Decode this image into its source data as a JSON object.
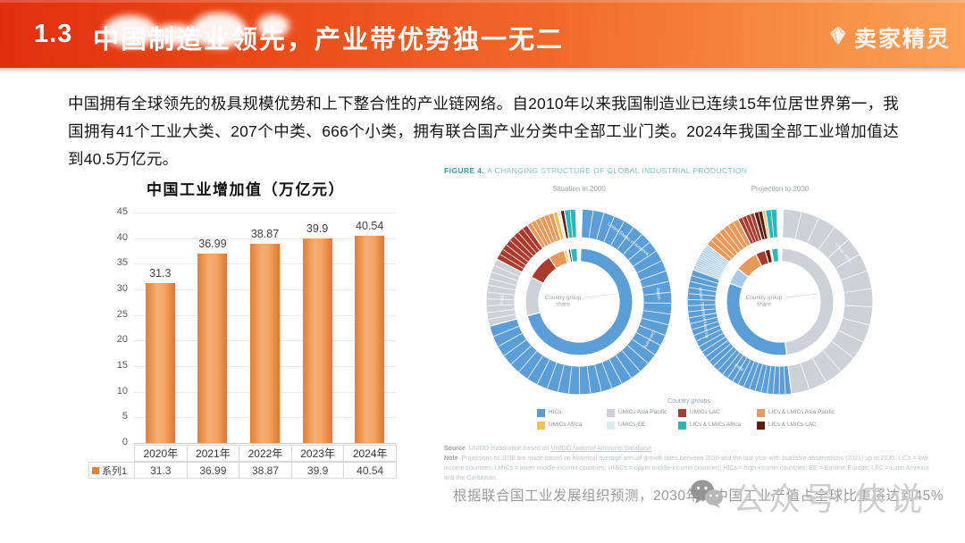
{
  "header": {
    "section_no": "1.3",
    "title": "中国制造业领先，产业带优势独一无二",
    "logo_text": "卖家精灵"
  },
  "intro": "中国拥有全球领先的极具规模优势和上下整合性的产业链网络。自2010年以来我国制造业已连续15年位居世界第一，我国拥有41个工业大类、207个中类、666个小类，拥有联合国产业分类中全部工业门类。2024年我国全部工业增加值达到40.5万亿元。",
  "chart_data": [
    {
      "id": "china-industrial-added-value",
      "type": "bar",
      "title": "中国工业增加值（万亿元）",
      "categories": [
        "2020年",
        "2021年",
        "2022年",
        "2023年",
        "2024年"
      ],
      "series": [
        {
          "name": "系列1",
          "values": [
            31.3,
            36.99,
            38.87,
            39.9,
            40.54
          ]
        }
      ],
      "ylim": [
        0,
        45
      ],
      "ytick_step": 5,
      "grid": true,
      "legend_position": "bottom-table",
      "bar_color": "#ed7d31"
    },
    {
      "id": "global-industrial-production-2000",
      "type": "pie",
      "title": "Situation in 2000",
      "unit": "% of world MVA",
      "segments": [
        {
          "name": "HICs",
          "value": 71,
          "color": "#5b9dd6",
          "dividers": 36
        },
        {
          "name": "UMICs Asia-Pacific",
          "value": 12,
          "color": "#ccd2d8",
          "dividers": 9
        },
        {
          "name": "UMICs LAC",
          "value": 8,
          "color": "#a93a2d",
          "dividers": 7
        },
        {
          "name": "LICs & LMICs Asia Pacific",
          "value": 5,
          "color": "#e8995a",
          "dividers": 5
        },
        {
          "name": "UMICs Africa",
          "value": 0.8,
          "color": "#f2c04a",
          "dividers": 0
        },
        {
          "name": "UMICs EE",
          "value": 0.5,
          "color": "#d9ebee",
          "dividers": 0
        },
        {
          "name": "LICs & LMICs LAC",
          "value": 0.7,
          "color": "#5f1d10",
          "dividers": 0
        },
        {
          "name": "LICs & LMICs Africa",
          "value": 2,
          "color": "#29b9bc",
          "dividers": 1
        }
      ],
      "annotations": [
        {
          "text": "United States of America",
          "angle": 38
        },
        {
          "text": "Japan",
          "angle": 84
        },
        {
          "text": "Germany",
          "angle": 118
        },
        {
          "text": "China",
          "angle": 272
        }
      ]
    },
    {
      "id": "global-industrial-production-2030",
      "type": "pie",
      "title": "Projection to 2030",
      "unit": "% of world MVA",
      "segments": [
        {
          "name": "UMICs Asia-Pacific",
          "value": 48,
          "color": "#ccd2d8",
          "dividers": 14
        },
        {
          "name": "HICs",
          "value": 33,
          "color": "#5b9dd6",
          "dividers": 30
        },
        {
          "name": "UMICs EE",
          "value": 5,
          "color": "#a9cbe9",
          "dividers": 12
        },
        {
          "name": "LICs & LMICs Asia Pacific",
          "value": 7,
          "color": "#e8995a",
          "dividers": 6
        },
        {
          "name": "UMICs LAC",
          "value": 3,
          "color": "#a93a2d",
          "dividers": 3
        },
        {
          "name": "LICs & LMICs LAC",
          "value": 1.5,
          "color": "#5f1d10",
          "dividers": 1
        },
        {
          "name": "UMICs Africa",
          "value": 0.5,
          "color": "#f2c04a",
          "dividers": 0
        },
        {
          "name": "LICs & LMICs Africa",
          "value": 2,
          "color": "#29b9bc",
          "dividers": 1
        }
      ],
      "annotations": [
        {
          "text": "China, 45%",
          "angle": 52
        },
        {
          "text": "India",
          "angle": 212
        },
        {
          "text": "United States of America",
          "angle": 262
        }
      ]
    }
  ],
  "figure": {
    "heading_prefix": "FIGURE 4.",
    "heading": "A CHANGING STRUCTURE OF GLOBAL INDUSTRIAL PRODUCTION",
    "center_label_line1": "Country group",
    "center_label_line2": "share",
    "legend_title": "Country groups",
    "legend": [
      {
        "label": "HICs",
        "color": "#5b9dd6"
      },
      {
        "label": "UMICs Asia-Pacific",
        "color": "#ccd2d8"
      },
      {
        "label": "UMICs LAC",
        "color": "#a93a2d"
      },
      {
        "label": "LICs & LMICs Asia Pacific",
        "color": "#e8995a"
      },
      {
        "label": "UMICs Africa",
        "color": "#f2c04a"
      },
      {
        "label": "UMICs EE",
        "color": "#d9ebee"
      },
      {
        "label": "LICs & LMICs Africa",
        "color": "#29b9bc"
      },
      {
        "label": "LICs & LMICs LAC",
        "color": "#5f1d10"
      }
    ],
    "source_label": "Source",
    "source_text": ": UNIDO elaboration based on ",
    "source_link": "UNIDO National Accounts Database",
    "source_end": ".",
    "note_label": "Note",
    "note_text": ": Projections to 2030 are made based on historical average annual growth rates between 2010 and the last year with available observations (2021) up to 2030. LICs = low-income countries; LMICs = lower middle-income countries; UMICs = upper middle-income countries; HICs = high-income countries; EE = Eastern Europe; LAC = Latin America and the Caribbean."
  },
  "caption": "根据联合国工业发展组织预测，2030年，中国工业产值占全球比重将达到45%",
  "watermark": {
    "text": "公众号·侠说",
    "icon": "wechat-icon"
  }
}
